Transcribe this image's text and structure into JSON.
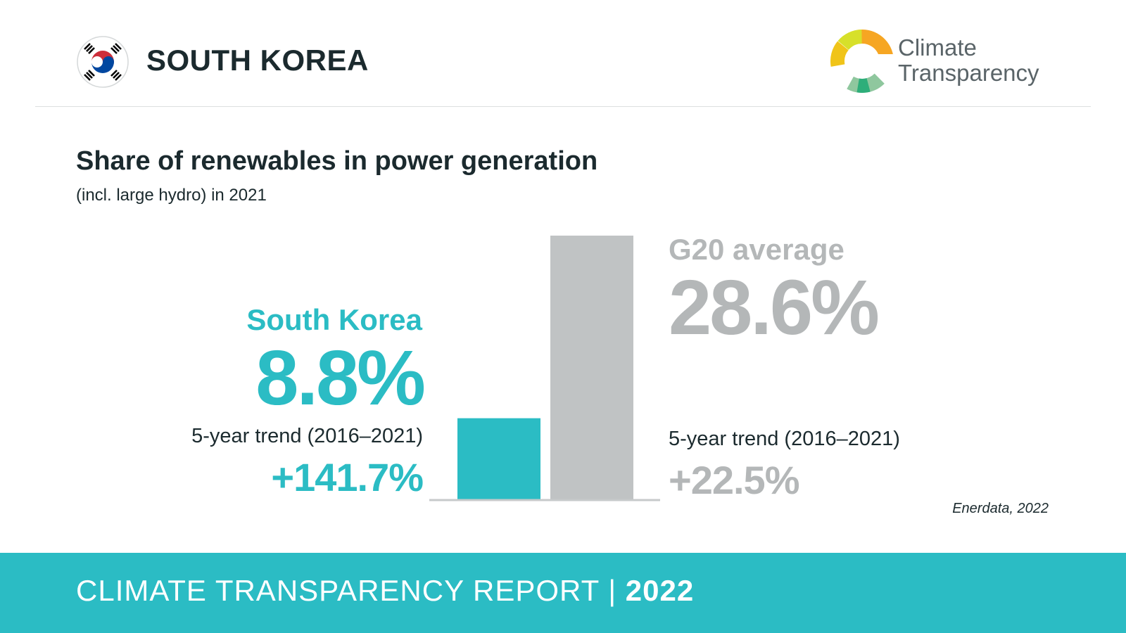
{
  "header": {
    "country": "SOUTH KOREA",
    "brand_line1": "Climate",
    "brand_line2": "Transparency"
  },
  "title": "Share of renewables in power generation",
  "subtitle": "(incl. large hydro) in 2021",
  "left": {
    "label": "South Korea",
    "value": "8.8%",
    "trend_label": "5-year trend (2016–2021)",
    "trend_value": "+141.7%"
  },
  "right": {
    "label": "G20 average",
    "value": "28.6%",
    "trend_label": "5-year trend (2016–2021)",
    "trend_value": "+22.5%"
  },
  "source": "Enerdata, 2022",
  "footer": {
    "text": "CLIMATE TRANSPARENCY REPORT",
    "separator": "|",
    "year": "2022"
  },
  "colors": {
    "accent": "#2bbcc4",
    "g20": "#c0c3c4",
    "text": "#1b2a2e"
  },
  "chart_data": {
    "type": "bar",
    "categories": [
      "South Korea",
      "G20 average"
    ],
    "values": [
      8.8,
      28.6
    ],
    "title": "Share of renewables in power generation",
    "subtitle": "(incl. large hydro) in 2021",
    "ylim": [
      0,
      28.6
    ],
    "colors": [
      "#2bbcc4",
      "#c0c3c4"
    ],
    "grid": false
  }
}
